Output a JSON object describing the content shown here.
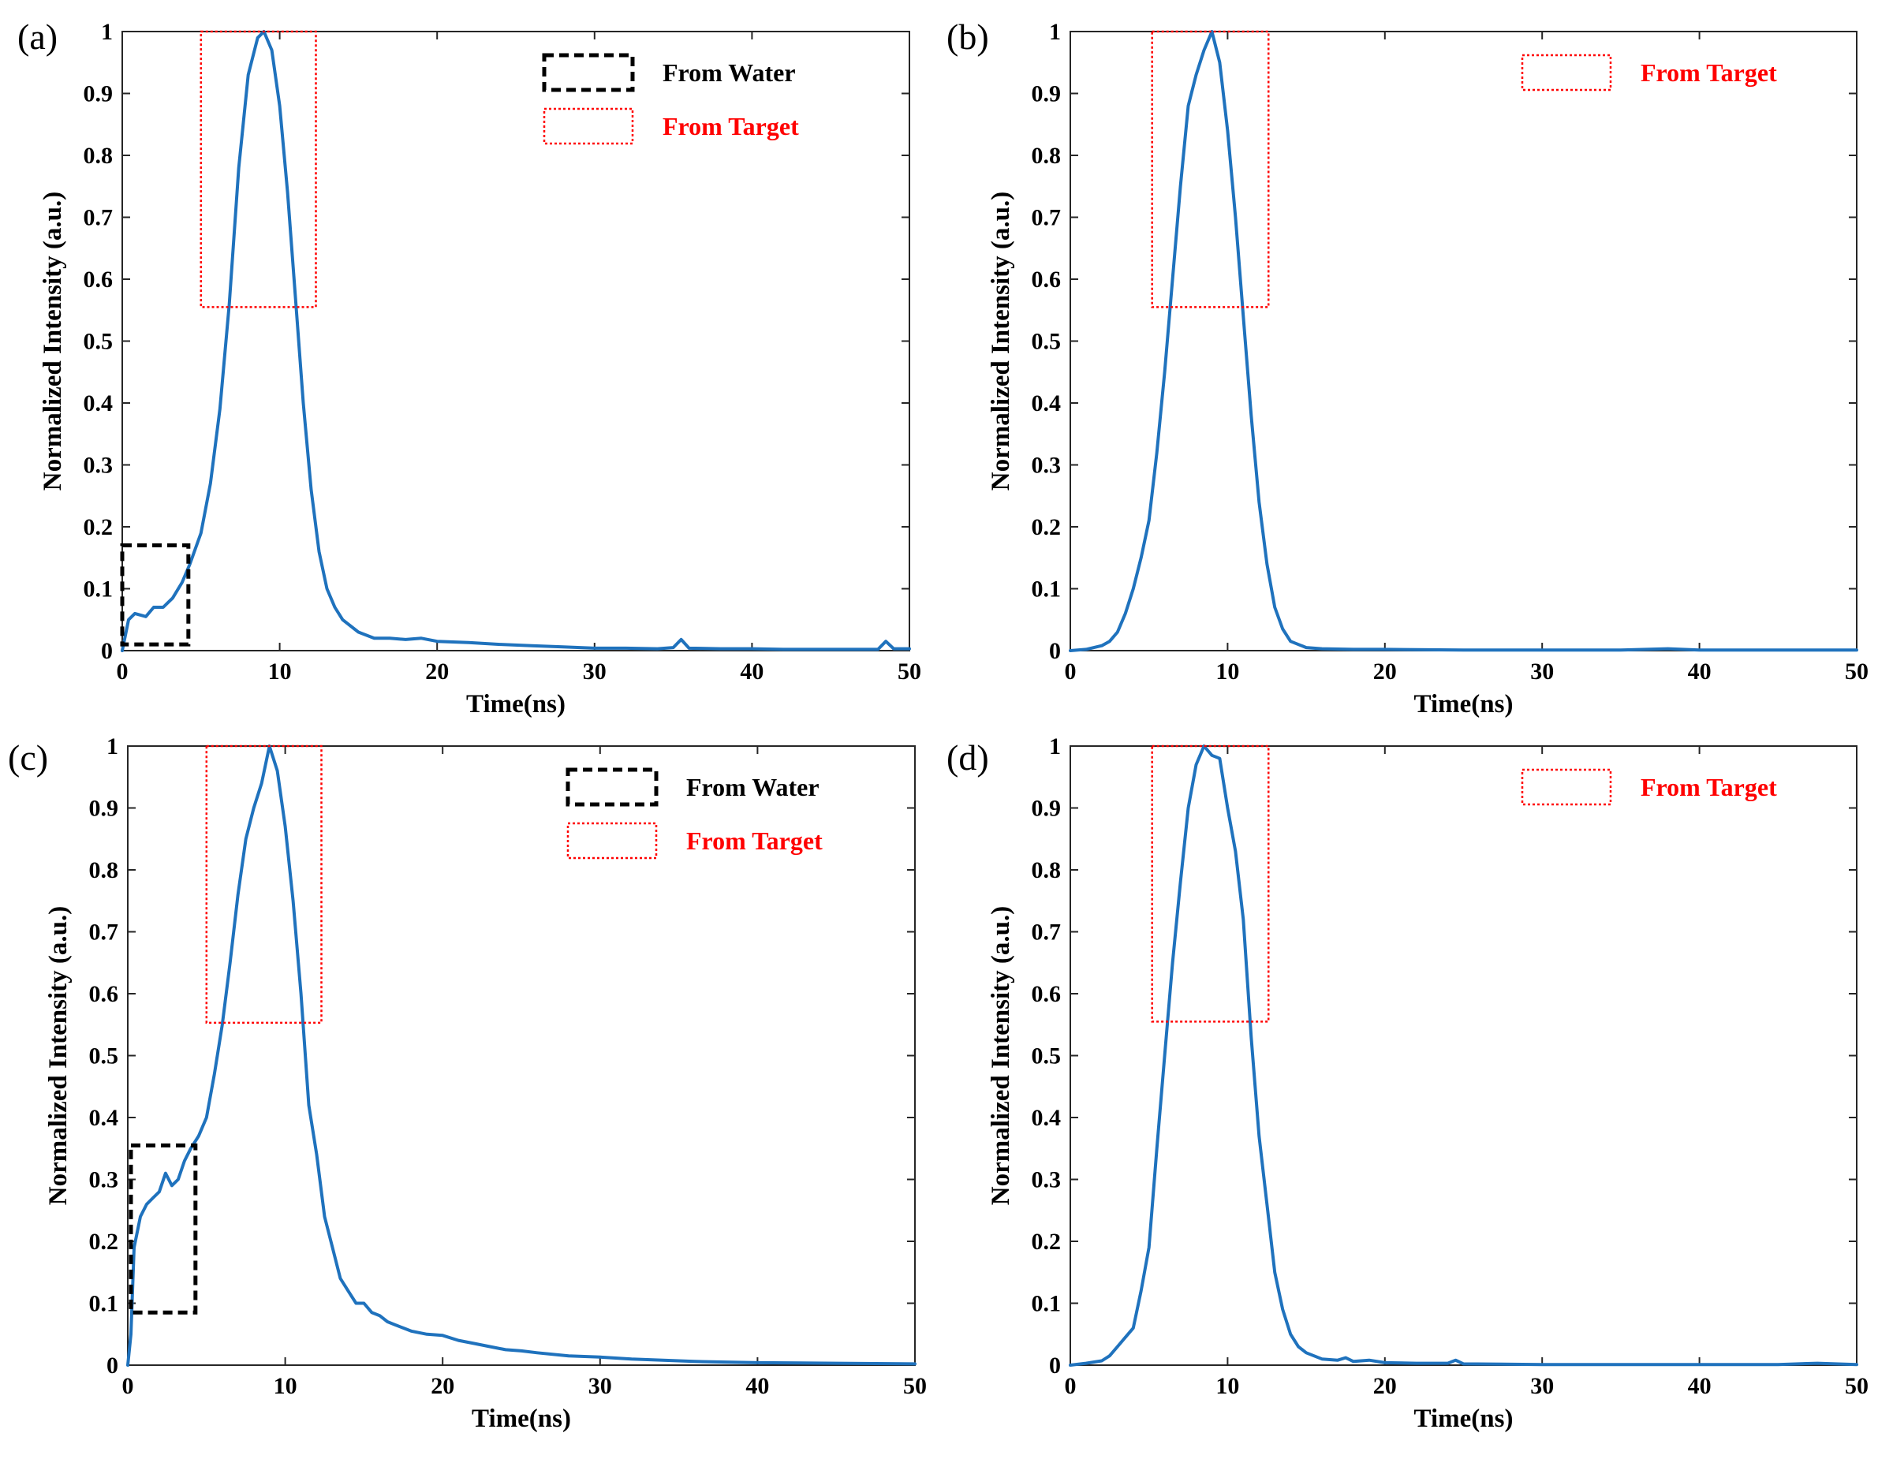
{
  "figure": {
    "layout": "2x2 grid of line plots",
    "colors": {
      "line": "#1f72bd",
      "water_box": "#000000",
      "target_box": "#ff0000",
      "axes": "#262626"
    }
  },
  "chart_data": [
    {
      "panel": "(a)",
      "type": "line",
      "xlabel": "Time(ns)",
      "ylabel": "Normalized Intensity (a.u.)",
      "xlim": [
        0,
        50
      ],
      "ylim": [
        0,
        1
      ],
      "xticks": [
        0,
        10,
        20,
        30,
        40,
        50
      ],
      "yticks": [
        0,
        0.1,
        0.2,
        0.3,
        0.4,
        0.5,
        0.6,
        0.7,
        0.8,
        0.9,
        1
      ],
      "grid": false,
      "legend": [
        {
          "label": "From Water",
          "style": "black-dashed-box"
        },
        {
          "label": "From Target",
          "style": "red-dotted-box"
        }
      ],
      "annotations": [
        {
          "label": "From Water",
          "x_range": [
            0,
            4.2
          ],
          "y_range": [
            0.01,
            0.17
          ]
        },
        {
          "label": "From Target",
          "x_range": [
            5,
            12.3
          ],
          "y_range": [
            0.555,
            1.0
          ]
        }
      ],
      "series": [
        {
          "name": "Normalized intensity",
          "x": [
            0,
            0.4,
            0.8,
            1.5,
            2,
            2.6,
            3.2,
            3.8,
            4.3,
            5,
            5.6,
            6.2,
            6.8,
            7.4,
            8,
            8.6,
            9,
            9.5,
            10,
            10.5,
            11,
            11.5,
            12,
            12.5,
            13,
            13.5,
            14,
            15,
            16,
            17,
            18,
            19,
            20,
            22,
            24,
            26,
            28,
            30,
            32,
            34,
            35,
            35.5,
            36,
            38,
            40,
            42,
            44,
            46,
            48,
            48.5,
            49,
            50
          ],
          "y": [
            0.0,
            0.05,
            0.06,
            0.055,
            0.07,
            0.07,
            0.085,
            0.11,
            0.14,
            0.19,
            0.27,
            0.39,
            0.56,
            0.78,
            0.93,
            0.99,
            1.0,
            0.97,
            0.88,
            0.74,
            0.57,
            0.4,
            0.26,
            0.16,
            0.1,
            0.07,
            0.05,
            0.03,
            0.02,
            0.02,
            0.018,
            0.02,
            0.015,
            0.013,
            0.01,
            0.008,
            0.006,
            0.004,
            0.004,
            0.003,
            0.005,
            0.018,
            0.004,
            0.003,
            0.003,
            0.002,
            0.002,
            0.002,
            0.002,
            0.015,
            0.003,
            0.003
          ]
        }
      ]
    },
    {
      "panel": "(b)",
      "type": "line",
      "xlabel": "Time(ns)",
      "ylabel": "Normalized Intensity (a.u.)",
      "xlim": [
        0,
        50
      ],
      "ylim": [
        0,
        1
      ],
      "xticks": [
        0,
        10,
        20,
        30,
        40,
        50
      ],
      "yticks": [
        0,
        0.1,
        0.2,
        0.3,
        0.4,
        0.5,
        0.6,
        0.7,
        0.8,
        0.9,
        1
      ],
      "grid": false,
      "legend": [
        {
          "label": "From Target",
          "style": "red-dotted-box"
        }
      ],
      "annotations": [
        {
          "label": "From Target",
          "x_range": [
            5.2,
            12.6
          ],
          "y_range": [
            0.555,
            1.0
          ]
        }
      ],
      "series": [
        {
          "name": "Normalized intensity",
          "x": [
            0,
            1,
            2,
            2.5,
            3,
            3.5,
            4,
            4.5,
            5,
            5.5,
            6,
            6.5,
            7,
            7.5,
            8,
            8.5,
            9,
            9.5,
            10,
            10.5,
            11,
            11.5,
            12,
            12.5,
            13,
            13.5,
            14,
            15,
            16,
            18,
            20,
            25,
            30,
            35,
            38,
            40,
            45,
            50
          ],
          "y": [
            0.0,
            0.002,
            0.008,
            0.015,
            0.03,
            0.06,
            0.1,
            0.15,
            0.21,
            0.32,
            0.45,
            0.6,
            0.75,
            0.88,
            0.93,
            0.97,
            1.0,
            0.95,
            0.84,
            0.7,
            0.54,
            0.38,
            0.24,
            0.14,
            0.07,
            0.035,
            0.015,
            0.005,
            0.003,
            0.002,
            0.002,
            0.001,
            0.001,
            0.001,
            0.003,
            0.001,
            0.001,
            0.001
          ]
        }
      ]
    },
    {
      "panel": "(c)",
      "type": "line",
      "xlabel": "Time(ns)",
      "ylabel": "Normalized Intensity (a.u.)",
      "xlim": [
        0,
        50
      ],
      "ylim": [
        0,
        1
      ],
      "xticks": [
        0,
        10,
        20,
        30,
        40,
        50
      ],
      "yticks": [
        0,
        0.1,
        0.2,
        0.3,
        0.4,
        0.5,
        0.6,
        0.7,
        0.8,
        0.9,
        1
      ],
      "grid": false,
      "legend": [
        {
          "label": "From Water",
          "style": "black-dashed-box"
        },
        {
          "label": "From Target",
          "style": "red-dotted-box"
        }
      ],
      "annotations": [
        {
          "label": "From Water",
          "x_range": [
            0.2,
            4.3
          ],
          "y_range": [
            0.085,
            0.355
          ]
        },
        {
          "label": "From Target",
          "x_range": [
            5,
            12.3
          ],
          "y_range": [
            0.553,
            1.0
          ]
        }
      ],
      "series": [
        {
          "name": "Normalized intensity",
          "x": [
            0,
            0.2,
            0.4,
            0.8,
            1.2,
            1.6,
            2,
            2.4,
            2.8,
            3.2,
            3.6,
            4,
            4.5,
            5,
            5.5,
            6,
            6.5,
            7,
            7.5,
            8,
            8.5,
            9,
            9.5,
            10,
            10.5,
            11,
            11.5,
            12,
            12.5,
            13,
            13.5,
            14,
            14.5,
            15,
            15.5,
            16,
            16.5,
            17,
            17.5,
            18,
            19,
            20,
            21,
            22,
            23,
            24,
            25,
            26,
            28,
            30,
            32,
            34,
            36,
            38,
            40,
            45,
            50
          ],
          "y": [
            0.0,
            0.05,
            0.19,
            0.24,
            0.26,
            0.27,
            0.28,
            0.31,
            0.29,
            0.3,
            0.33,
            0.35,
            0.37,
            0.4,
            0.47,
            0.55,
            0.65,
            0.76,
            0.85,
            0.9,
            0.94,
            1.0,
            0.96,
            0.87,
            0.75,
            0.6,
            0.42,
            0.34,
            0.24,
            0.19,
            0.14,
            0.12,
            0.1,
            0.1,
            0.085,
            0.08,
            0.07,
            0.065,
            0.06,
            0.055,
            0.05,
            0.048,
            0.04,
            0.035,
            0.03,
            0.025,
            0.023,
            0.02,
            0.015,
            0.013,
            0.01,
            0.008,
            0.006,
            0.005,
            0.004,
            0.003,
            0.002
          ]
        }
      ]
    },
    {
      "panel": "(d)",
      "type": "line",
      "xlabel": "Time(ns)",
      "ylabel": "Normalized Intensity (a.u.)",
      "xlim": [
        0,
        50
      ],
      "ylim": [
        0,
        1
      ],
      "xticks": [
        0,
        10,
        20,
        30,
        40,
        50
      ],
      "yticks": [
        0,
        0.1,
        0.2,
        0.3,
        0.4,
        0.5,
        0.6,
        0.7,
        0.8,
        0.9,
        1
      ],
      "grid": false,
      "legend": [
        {
          "label": "From Target",
          "style": "red-dotted-box"
        }
      ],
      "annotations": [
        {
          "label": "From Target",
          "x_range": [
            5.2,
            12.6
          ],
          "y_range": [
            0.555,
            1.0
          ]
        }
      ],
      "series": [
        {
          "name": "Normalized intensity",
          "x": [
            0,
            1,
            2,
            2.5,
            3,
            3.5,
            4,
            4.5,
            5,
            5.5,
            6,
            6.5,
            7,
            7.5,
            8,
            8.5,
            9,
            9.5,
            10,
            10.5,
            11,
            11.5,
            12,
            12.5,
            13,
            13.5,
            14,
            14.5,
            15,
            16,
            17,
            17.5,
            18,
            19,
            20,
            22,
            24,
            24.5,
            25,
            30,
            35,
            40,
            45,
            47.5,
            50
          ],
          "y": [
            0.0,
            0.003,
            0.007,
            0.015,
            0.03,
            0.045,
            0.06,
            0.12,
            0.19,
            0.35,
            0.5,
            0.65,
            0.78,
            0.9,
            0.97,
            1.0,
            0.985,
            0.98,
            0.9,
            0.83,
            0.72,
            0.53,
            0.37,
            0.26,
            0.15,
            0.09,
            0.05,
            0.03,
            0.02,
            0.01,
            0.008,
            0.012,
            0.006,
            0.008,
            0.004,
            0.003,
            0.003,
            0.008,
            0.002,
            0.001,
            0.001,
            0.001,
            0.001,
            0.003,
            0.001
          ]
        }
      ]
    }
  ]
}
